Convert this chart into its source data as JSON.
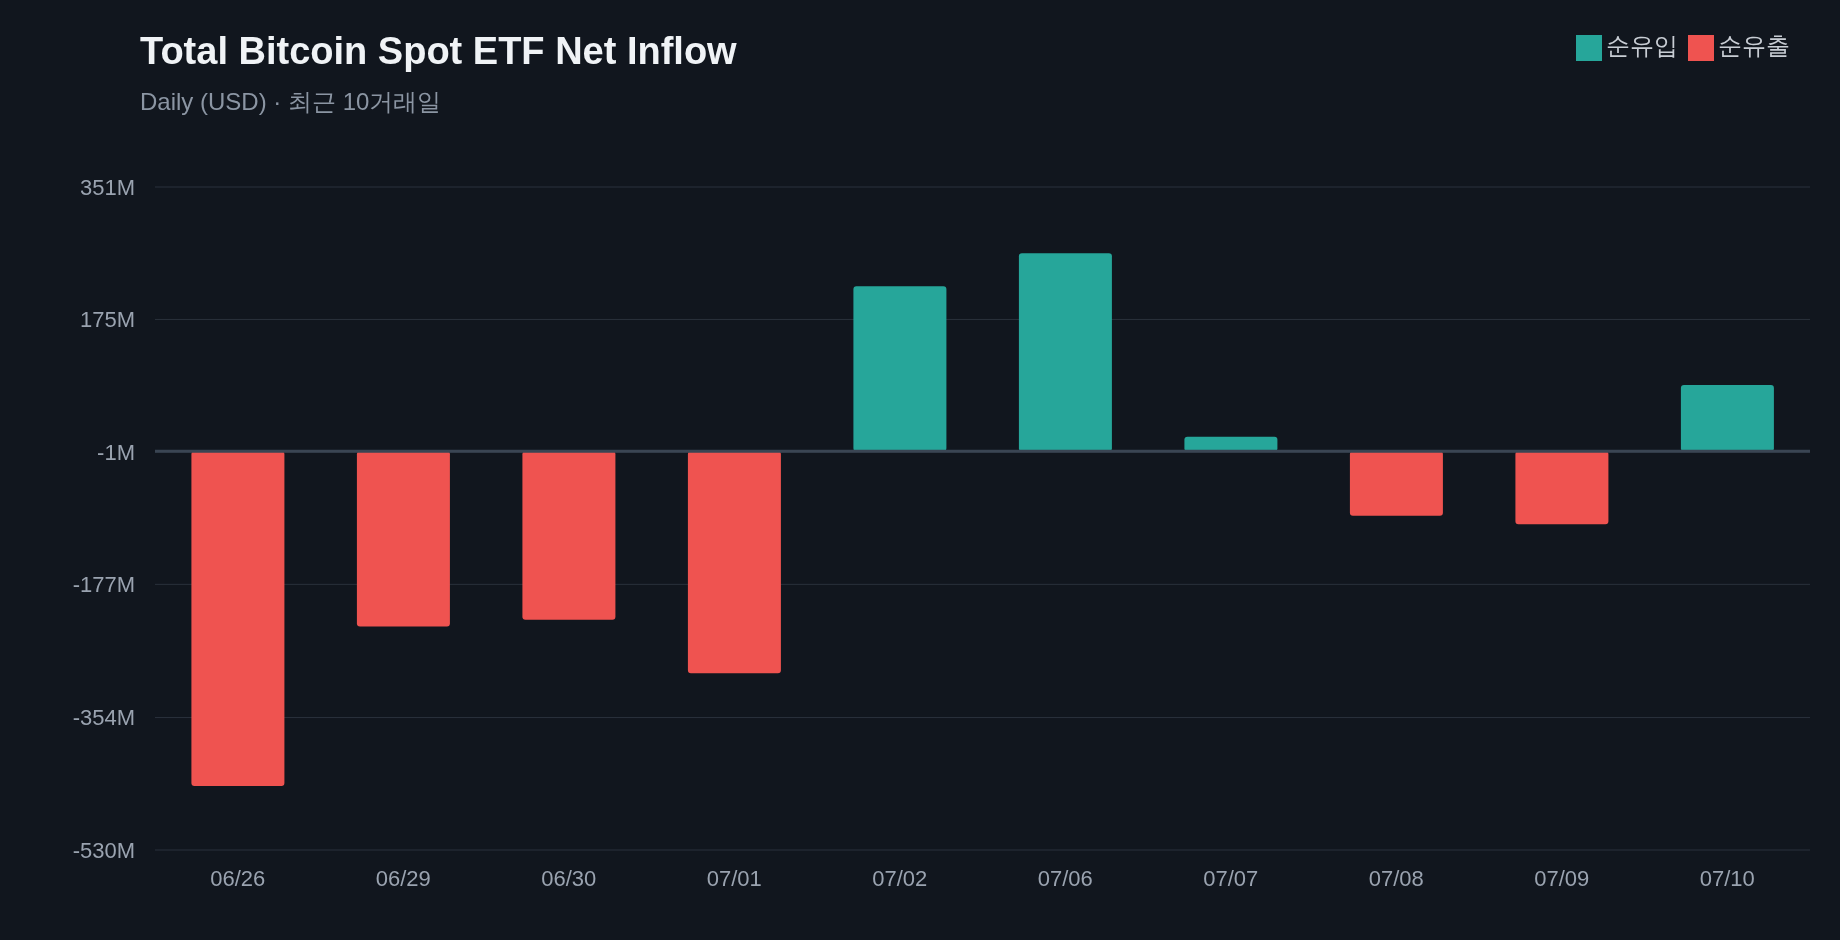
{
  "chart_data": {
    "type": "bar",
    "title": "Total Bitcoin Spot ETF Net Inflow",
    "subtitle": "Daily (USD) · 최근 10거래일",
    "categories": [
      "06/26",
      "06/29",
      "06/30",
      "07/01",
      "07/02",
      "07/06",
      "07/07",
      "07/08",
      "07/09",
      "07/10"
    ],
    "series": [
      {
        "name": "순유입",
        "color": "#26a69a",
        "values": [
          null,
          null,
          null,
          null,
          219,
          263,
          19,
          null,
          null,
          88
        ]
      },
      {
        "name": "순유출",
        "color": "#ef5350",
        "values": [
          -445,
          -233,
          -224,
          -295,
          null,
          null,
          null,
          -86,
          -97,
          null
        ]
      }
    ],
    "stacked": true,
    "ylim": [
      -530,
      351
    ],
    "yticks": [
      {
        "value": 351,
        "label": "351M"
      },
      {
        "value": 175,
        "label": "175M"
      },
      {
        "value": -1,
        "label": "-1M"
      },
      {
        "value": -177,
        "label": "-177M"
      },
      {
        "value": -354,
        "label": "-354M"
      },
      {
        "value": -530,
        "label": "-530M"
      }
    ],
    "ref_lines": [
      {
        "axis": "y",
        "value": 0,
        "color": "#3a4553"
      }
    ],
    "grid": "y",
    "legend": "top right"
  }
}
